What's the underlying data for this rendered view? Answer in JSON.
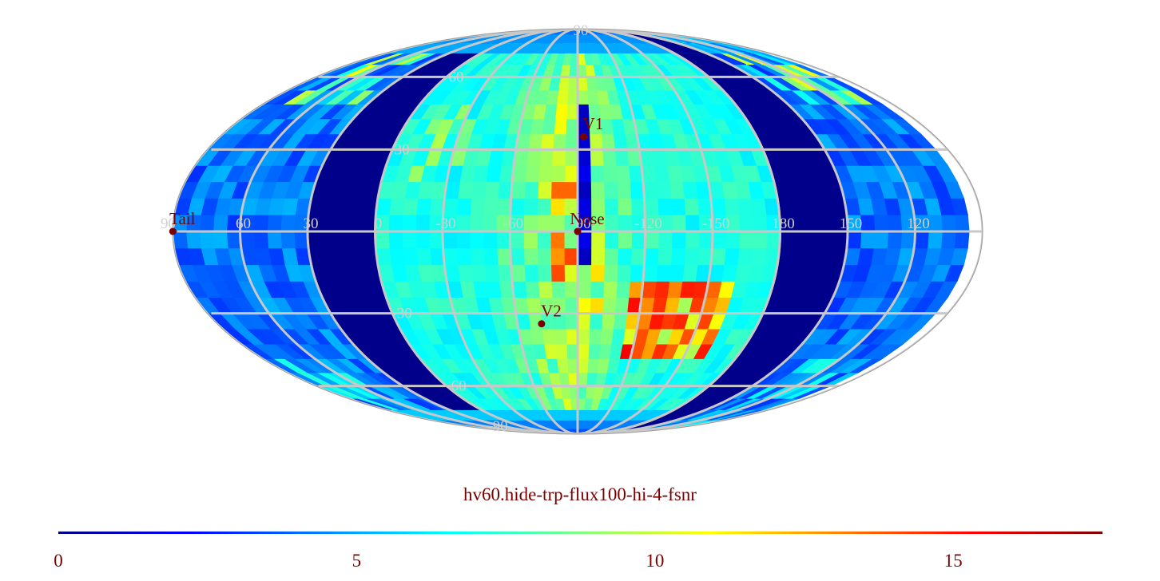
{
  "chart_data": {
    "type": "heatmap",
    "projection": "mollweide",
    "title": "hv60.hide-trp-flux100-hi-4-fsnr",
    "colormap": "jet",
    "colorbar": {
      "min": 0,
      "max": 17.5,
      "ticks": [
        {
          "value": 0,
          "label": "0"
        },
        {
          "value": 5,
          "label": "5"
        },
        {
          "value": 10,
          "label": "10"
        },
        {
          "value": 15,
          "label": "15"
        }
      ],
      "stops": [
        "#00007f",
        "#0000ff",
        "#007fff",
        "#00ffff",
        "#7fff7f",
        "#ffff00",
        "#ff7f00",
        "#ff0000",
        "#7f0000"
      ]
    },
    "grid": {
      "meridian_labels": [
        {
          "label": "60",
          "lon": 60
        },
        {
          "label": "30",
          "lon": 30
        },
        {
          "label": "0",
          "lon": 0
        },
        {
          "label": "-30",
          "lon": -30
        },
        {
          "label": "-60",
          "lon": -60
        },
        {
          "label": "-90",
          "lon": -90
        },
        {
          "label": "-120",
          "lon": -120
        },
        {
          "label": "-150",
          "lon": -150
        },
        {
          "label": "180",
          "lon": 180
        },
        {
          "label": "150",
          "lon": 150
        },
        {
          "label": "120",
          "lon": 120
        },
        {
          "label": "90",
          "lon": 90
        }
      ],
      "parallel_labels": [
        {
          "label": "90",
          "lat": 90
        },
        {
          "label": "60",
          "lat": 60
        },
        {
          "label": "30",
          "lat": 30
        },
        {
          "label": "-30",
          "lat": -30
        },
        {
          "label": "-60",
          "lat": -60
        },
        {
          "label": "-90",
          "lat": -90
        }
      ]
    },
    "markers": [
      {
        "label": "V1",
        "lon": -93,
        "lat": 35
      },
      {
        "label": "Nose",
        "lon": -90,
        "lat": 0
      },
      {
        "label": "Tail",
        "lon": 90,
        "lat": 0
      },
      {
        "label": "V2",
        "lon": -72,
        "lat": -34
      }
    ]
  }
}
